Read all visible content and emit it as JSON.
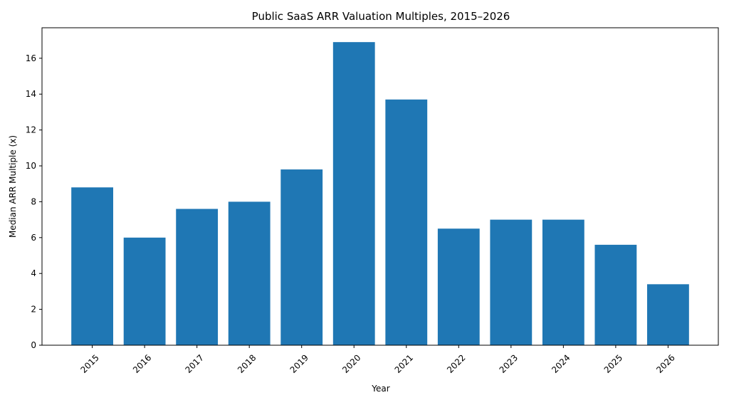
{
  "chart_data": {
    "type": "bar",
    "title": "Public SaaS ARR Valuation Multiples, 2015–2026",
    "xlabel": "Year",
    "ylabel": "Median ARR Multiple (x)",
    "categories": [
      "2015",
      "2016",
      "2017",
      "2018",
      "2019",
      "2020",
      "2021",
      "2022",
      "2023",
      "2024",
      "2025",
      "2026"
    ],
    "values": [
      8.8,
      6.0,
      7.6,
      8.0,
      9.8,
      16.9,
      13.7,
      6.5,
      7.0,
      7.0,
      5.6,
      3.4
    ],
    "ylim": [
      0,
      17.7
    ],
    "yticks": [
      0,
      2,
      4,
      6,
      8,
      10,
      12,
      14,
      16
    ],
    "grid": false,
    "legend": "none",
    "colors": {
      "bar": "#1f77b4",
      "axis": "#000000",
      "background": "#ffffff"
    }
  }
}
